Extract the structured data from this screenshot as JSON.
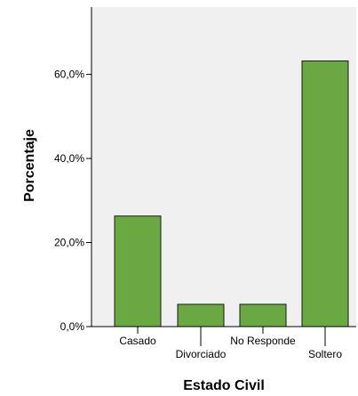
{
  "chart_data": {
    "type": "bar",
    "xlabel": "Estado Civil",
    "ylabel": "Porcentaje",
    "categories": [
      "Casado",
      "Divorciado",
      "No Responde",
      "Soltero"
    ],
    "values": [
      26.3,
      5.3,
      5.3,
      63.2
    ],
    "yticks": [
      0,
      20,
      40,
      60
    ],
    "ytick_labels": [
      "0,0%",
      "20,0%",
      "40,0%",
      "60,0%"
    ],
    "ylim": [
      0,
      76
    ],
    "grid": false,
    "legend": "none",
    "colors": {
      "bar_fill": "#6aa842",
      "bar_stroke": "#1a1a1a",
      "plot_background": "#f0f0f0",
      "axis": "#000000"
    }
  }
}
